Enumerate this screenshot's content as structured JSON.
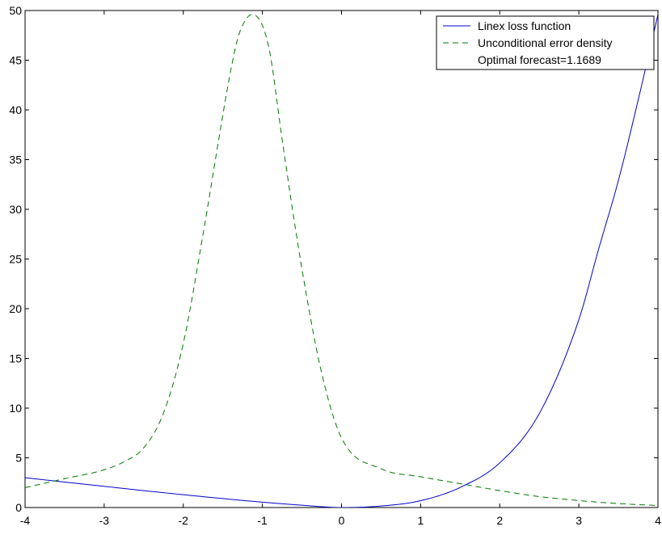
{
  "chart_data": {
    "type": "line",
    "title": "",
    "xlabel": "",
    "ylabel": "",
    "xlim": [
      -4,
      4
    ],
    "ylim": [
      0,
      50
    ],
    "grid": false,
    "legend_position": "top-right",
    "x_ticks": [
      -4,
      -3,
      -2,
      -1,
      0,
      1,
      2,
      3,
      4
    ],
    "y_ticks": [
      0,
      5,
      10,
      15,
      20,
      25,
      30,
      35,
      40,
      45,
      50
    ],
    "x_tick_labels": [
      "-4",
      "-3",
      "-2",
      "-1",
      "0",
      "1",
      "2",
      "3",
      "4"
    ],
    "y_tick_labels": [
      "0",
      "5",
      "10",
      "15",
      "20",
      "25",
      "30",
      "35",
      "40",
      "45",
      "50"
    ],
    "legend_entries": [
      "Linex loss function",
      "Unconditional error density",
      "Optimal forecast=1.1689"
    ],
    "series": [
      {
        "name": "Linex loss function",
        "style": "solid",
        "color": "#0000cc",
        "x": [
          -4,
          -3.5,
          -3,
          -2.5,
          -2,
          -1.5,
          -1,
          -0.5,
          0,
          0.5,
          1,
          1.5,
          2,
          2.5,
          3,
          3.25,
          3.5,
          3.75,
          4
        ],
        "values": [
          3.0,
          2.56,
          2.13,
          1.7,
          1.29,
          0.9,
          0.54,
          0.23,
          0.0,
          0.15,
          0.69,
          2.02,
          4.49,
          9.45,
          18.9,
          26.0,
          32.9,
          41.0,
          49.6
        ]
      },
      {
        "name": "Unconditional error density",
        "style": "dashed",
        "color": "#007700",
        "x": [
          -4,
          -3.5,
          -3,
          -2.75,
          -2.5,
          -2.25,
          -2,
          -1.75,
          -1.5,
          -1.4,
          -1.3,
          -1.2,
          -1.13,
          -1,
          -0.9,
          -0.75,
          -0.5,
          -0.25,
          0,
          0.5,
          1,
          1.5,
          2,
          2.5,
          3,
          3.5,
          4
        ],
        "values": [
          2.0,
          2.9,
          3.8,
          4.6,
          6.0,
          9.5,
          16.5,
          27.5,
          39.5,
          44.0,
          47.5,
          49.2,
          49.6,
          48.5,
          45.5,
          37.0,
          24.0,
          13.5,
          7.0,
          3.9,
          3.1,
          2.4,
          1.7,
          1.1,
          0.7,
          0.4,
          0.2
        ]
      }
    ]
  }
}
